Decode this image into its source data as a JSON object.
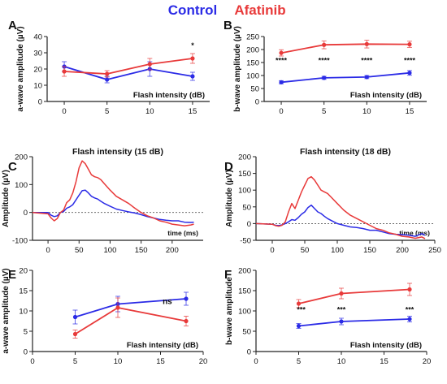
{
  "legend": {
    "entries": [
      {
        "label": "Control",
        "color": "#2b2be6"
      },
      {
        "label": "Afatinib",
        "color": "#e83a3a"
      }
    ]
  },
  "chart_data": [
    {
      "id": "A",
      "panel_label": "A",
      "type": "line",
      "ylabel": "a-wave amplitude (µV)",
      "xlabel": "",
      "inside_label": "Flash intensity (dB)",
      "xlim": [
        -2,
        17
      ],
      "ylim": [
        0,
        40
      ],
      "xticks": [
        0,
        5,
        10,
        15
      ],
      "yticks": [
        0,
        10,
        20,
        30,
        40
      ],
      "series": [
        {
          "name": "Control",
          "color": "#2b2be6",
          "x": [
            0,
            5,
            10,
            15
          ],
          "y": [
            21.5,
            13.5,
            20.0,
            15.5
          ],
          "err": [
            3,
            2,
            4.5,
            2.5
          ]
        },
        {
          "name": "Afatinib",
          "color": "#e83a3a",
          "x": [
            0,
            5,
            10,
            15
          ],
          "y": [
            18.5,
            17.0,
            23.0,
            26.5
          ],
          "err": [
            3,
            2,
            3.5,
            3
          ]
        }
      ],
      "annotations": [
        {
          "text": "*",
          "x": 15,
          "y": 33
        }
      ]
    },
    {
      "id": "B",
      "panel_label": "B",
      "type": "line",
      "ylabel": "b-wave amplitude (µV)",
      "xlabel": "",
      "inside_label": "Flash intensity (dB)",
      "xlim": [
        -2,
        17
      ],
      "ylim": [
        0,
        250
      ],
      "xticks": [
        0,
        5,
        10,
        15
      ],
      "yticks": [
        0,
        50,
        100,
        150,
        200,
        250
      ],
      "series": [
        {
          "name": "Control",
          "color": "#2b2be6",
          "x": [
            0,
            5,
            10,
            15
          ],
          "y": [
            74,
            91,
            94,
            110
          ],
          "err": [
            6,
            6,
            6,
            9
          ]
        },
        {
          "name": "Afatinib",
          "color": "#e83a3a",
          "x": [
            0,
            5,
            10,
            15
          ],
          "y": [
            187,
            218,
            221,
            220
          ],
          "err": [
            12,
            15,
            15,
            12
          ]
        }
      ],
      "annotations": [
        {
          "text": "****",
          "x": 0,
          "y": 148
        },
        {
          "text": "****",
          "x": 5,
          "y": 148
        },
        {
          "text": "****",
          "x": 10,
          "y": 148
        },
        {
          "text": "****",
          "x": 15,
          "y": 148
        }
      ]
    },
    {
      "id": "C",
      "panel_label": "C",
      "type": "line",
      "title": "Flash intensity (15 dB)",
      "ylabel": "Amplitude (µV)",
      "xlabel": "",
      "inside_label": "time (ms)",
      "xlim": [
        -25,
        250
      ],
      "ylim": [
        -100,
        200
      ],
      "xticks": [
        0,
        50,
        100,
        150,
        200
      ],
      "yticks": [
        -100,
        0,
        100,
        200
      ],
      "zero_line": true,
      "series": [
        {
          "name": "Control",
          "color": "#2b2be6",
          "x": [
            -25,
            0,
            5,
            10,
            15,
            20,
            25,
            30,
            35,
            40,
            45,
            50,
            55,
            60,
            65,
            70,
            75,
            80,
            85,
            90,
            100,
            110,
            120,
            130,
            140,
            150,
            160,
            170,
            180,
            190,
            200,
            210,
            220,
            230,
            235
          ],
          "y": [
            0,
            0,
            -10,
            -15,
            -12,
            0,
            3,
            15,
            20,
            28,
            45,
            62,
            78,
            80,
            70,
            58,
            52,
            48,
            40,
            33,
            22,
            12,
            7,
            2,
            -2,
            -8,
            -15,
            -20,
            -25,
            -28,
            -30,
            -30,
            -35,
            -36,
            -35
          ]
        },
        {
          "name": "Afatinib",
          "color": "#e83a3a",
          "x": [
            -25,
            0,
            5,
            10,
            15,
            20,
            25,
            30,
            35,
            40,
            45,
            50,
            55,
            60,
            65,
            70,
            75,
            80,
            85,
            90,
            100,
            110,
            120,
            130,
            140,
            150,
            160,
            170,
            180,
            190,
            200,
            210,
            220,
            230,
            235
          ],
          "y": [
            0,
            -5,
            -20,
            -30,
            -22,
            0,
            8,
            35,
            45,
            70,
            110,
            160,
            185,
            175,
            155,
            135,
            128,
            125,
            118,
            105,
            80,
            58,
            45,
            32,
            15,
            0,
            -12,
            -20,
            -30,
            -35,
            -42,
            -45,
            -48,
            -45,
            -42
          ]
        }
      ]
    },
    {
      "id": "D",
      "panel_label": "D",
      "type": "line",
      "title": "Flash intensity (18 dB)",
      "ylabel": "Amplitude (µV)",
      "xlabel": "",
      "inside_label": "time (ms)",
      "xlim": [
        -25,
        250
      ],
      "ylim": [
        -50,
        200
      ],
      "xticks": [
        0,
        50,
        100,
        150,
        200,
        250
      ],
      "yticks": [
        -50,
        0,
        50,
        100,
        150,
        200
      ],
      "zero_line": true,
      "series": [
        {
          "name": "Control",
          "color": "#2b2be6",
          "x": [
            -25,
            0,
            5,
            10,
            15,
            20,
            25,
            30,
            35,
            40,
            45,
            50,
            55,
            60,
            65,
            70,
            75,
            80,
            85,
            90,
            100,
            110,
            120,
            130,
            140,
            150,
            160,
            170,
            180,
            190,
            200,
            210,
            220,
            230,
            235
          ],
          "y": [
            0,
            -2,
            -5,
            -6,
            -4,
            0,
            5,
            12,
            10,
            18,
            28,
            35,
            48,
            55,
            45,
            35,
            30,
            22,
            15,
            10,
            0,
            -5,
            -10,
            -12,
            -15,
            -20,
            -20,
            -25,
            -30,
            -32,
            -33,
            -35,
            -38,
            -30,
            -35
          ]
        },
        {
          "name": "Afatinib",
          "color": "#e83a3a",
          "x": [
            -25,
            0,
            5,
            10,
            15,
            20,
            25,
            30,
            35,
            40,
            45,
            50,
            55,
            60,
            65,
            70,
            75,
            80,
            85,
            90,
            100,
            110,
            120,
            130,
            140,
            150,
            160,
            170,
            180,
            190,
            200,
            210,
            220,
            230,
            235
          ],
          "y": [
            0,
            -2,
            -6,
            -8,
            -5,
            5,
            35,
            60,
            45,
            70,
            95,
            115,
            135,
            140,
            130,
            115,
            100,
            95,
            90,
            80,
            60,
            40,
            25,
            15,
            5,
            -5,
            -15,
            -20,
            -28,
            -32,
            -38,
            -40,
            -44,
            -40,
            -45
          ]
        }
      ]
    },
    {
      "id": "E",
      "panel_label": "E",
      "type": "line",
      "ylabel": "a-wave amplitude (µV)",
      "xlabel": "",
      "inside_label": "Flash intensity (dB)",
      "xlim": [
        0,
        20
      ],
      "ylim": [
        0,
        20
      ],
      "xticks": [
        0,
        5,
        10,
        15,
        20
      ],
      "yticks": [
        0,
        5,
        10,
        15,
        20
      ],
      "series": [
        {
          "name": "Control",
          "color": "#2b2be6",
          "x": [
            5,
            10,
            18
          ],
          "y": [
            8.5,
            11.7,
            13.0
          ],
          "err": [
            1.7,
            1.9,
            1.6
          ]
        },
        {
          "name": "Afatinib",
          "color": "#e83a3a",
          "x": [
            5,
            10,
            18
          ],
          "y": [
            4.3,
            10.8,
            7.5
          ],
          "err": [
            1.0,
            2.4,
            1.2
          ]
        }
      ],
      "annotations": [
        {
          "text": "ns",
          "x": 15.8,
          "y": 11.7
        }
      ]
    },
    {
      "id": "F",
      "panel_label": "F",
      "type": "line",
      "ylabel": "b-wave amplitude",
      "xlabel": "",
      "inside_label": "Flash intensity (dB)",
      "xlim": [
        0,
        20
      ],
      "ylim": [
        0,
        200
      ],
      "xticks": [
        0,
        5,
        10,
        15,
        20
      ],
      "yticks": [
        0,
        50,
        100,
        150,
        200
      ],
      "series": [
        {
          "name": "Control",
          "color": "#2b2be6",
          "x": [
            5,
            10,
            18
          ],
          "y": [
            63,
            74,
            80
          ],
          "err": [
            6,
            8,
            7
          ]
        },
        {
          "name": "Afatinib",
          "color": "#e83a3a",
          "x": [
            5,
            10,
            18
          ],
          "y": [
            118,
            143,
            153
          ],
          "err": [
            10,
            13,
            15
          ]
        }
      ],
      "annotations": [
        {
          "text": "***",
          "x": 5.3,
          "y": 97
        },
        {
          "text": "***",
          "x": 10,
          "y": 97
        },
        {
          "text": "***",
          "x": 18,
          "y": 97
        }
      ]
    }
  ]
}
